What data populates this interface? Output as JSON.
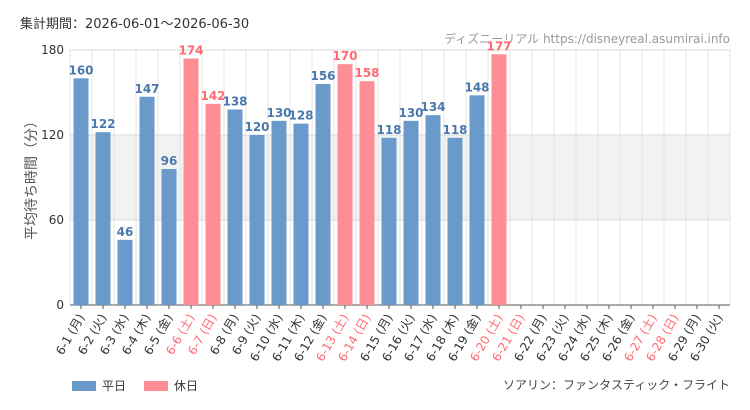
{
  "header": {
    "period_label": "集計期間：2026-06-01～2026-06-30",
    "credit": "ディズニーリアル https://disneyreal.asumirai.info"
  },
  "footer": {
    "attraction": "ソアリン：ファンタスティック・フライト"
  },
  "legend": {
    "weekday_label": "平日",
    "holiday_label": "休日"
  },
  "colors": {
    "weekday": "#6a9ac9",
    "holiday": "#ff8e94",
    "holiday_text": "#ff6b72",
    "weekday_text": "#4a78ad"
  },
  "chart_data": {
    "type": "bar",
    "ylabel": "平均待ち時間（分）",
    "ylim": [
      0,
      180
    ],
    "yticks": [
      "0",
      "60",
      "120",
      "180"
    ],
    "shaded_band": [
      60,
      120
    ],
    "grid": true,
    "legend_position": "bottom-left",
    "categories": [
      "6-1 (月)",
      "6-2 (火)",
      "6-3 (水)",
      "6-4 (木)",
      "6-5 (金)",
      "6-6 (土)",
      "6-7 (日)",
      "6-8 (月)",
      "6-9 (火)",
      "6-10 (水)",
      "6-11 (木)",
      "6-12 (金)",
      "6-13 (土)",
      "6-14 (日)",
      "6-15 (月)",
      "6-16 (火)",
      "6-17 (水)",
      "6-18 (木)",
      "6-19 (金)",
      "6-20 (土)",
      "6-21 (日)",
      "6-22 (月)",
      "6-23 (火)",
      "6-24 (水)",
      "6-25 (木)",
      "6-26 (金)",
      "6-27 (土)",
      "6-28 (日)",
      "6-29 (月)",
      "6-30 (火)"
    ],
    "holiday": [
      false,
      false,
      false,
      false,
      false,
      true,
      true,
      false,
      false,
      false,
      false,
      false,
      true,
      true,
      false,
      false,
      false,
      false,
      false,
      true,
      true,
      false,
      false,
      false,
      false,
      false,
      true,
      true,
      false,
      false
    ],
    "values": [
      160,
      122,
      46,
      147,
      96,
      174,
      142,
      138,
      120,
      130,
      128,
      156,
      170,
      158,
      118,
      130,
      134,
      118,
      148,
      177,
      null,
      null,
      null,
      null,
      null,
      null,
      null,
      null,
      null,
      null
    ]
  }
}
